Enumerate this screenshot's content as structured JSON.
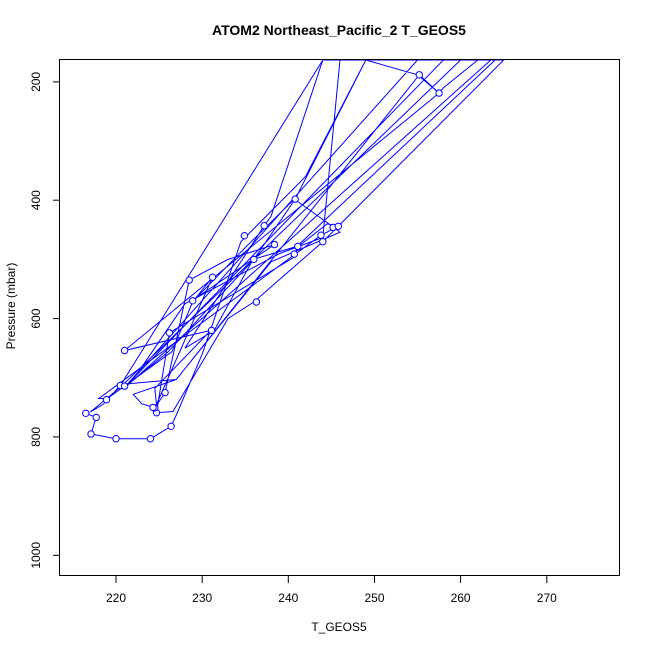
{
  "chart_data": {
    "type": "line",
    "title": "ATOM2 Northeast_Pacific_2 T_GEOS5",
    "xlabel": "T_GEOS5",
    "ylabel": "Pressure (mbar)",
    "xlim": [
      213.5,
      278.5
    ],
    "ylim": [
      1035,
      163
    ],
    "y_reversed": true,
    "xticks": [
      220,
      230,
      240,
      250,
      260,
      270
    ],
    "yticks": [
      200,
      400,
      600,
      800,
      1000
    ],
    "color": "#0000ff",
    "grid": false,
    "series": [
      {
        "points": [
          [
            216.5,
            760
          ],
          [
            217.7,
            767
          ],
          [
            217.1,
            795
          ],
          [
            220.0,
            803
          ],
          [
            224.0,
            803
          ],
          [
            226.4,
            782
          ],
          [
            227.0,
            763
          ],
          [
            230.0,
            660
          ],
          [
            234.5,
            470
          ],
          [
            242.0,
            360
          ],
          [
            249.0,
            163
          ],
          [
            255.0,
            188
          ],
          [
            257.5,
            219
          ],
          [
            258.0,
            210
          ],
          [
            262.0,
            163
          ],
          [
            264.0,
            163
          ],
          [
            241.0,
            478
          ],
          [
            235.9,
            500
          ],
          [
            231.4,
            620
          ],
          [
            228.0,
            650
          ],
          [
            237.2,
            443
          ],
          [
            238.0,
            427
          ],
          [
            244.0,
            163
          ],
          [
            265.0,
            163
          ],
          [
            244.0,
            470
          ],
          [
            236.0,
            572
          ],
          [
            233.0,
            600
          ],
          [
            226.6,
            757
          ],
          [
            224.7,
            759
          ],
          [
            226.2,
            624
          ],
          [
            240.7,
            496
          ],
          [
            241.0,
            480
          ],
          [
            244.5,
            440
          ],
          [
            245.8,
            444
          ],
          [
            243.8,
            459
          ],
          [
            218.0,
            735
          ],
          [
            219.0,
            735
          ],
          [
            226.5,
            656
          ],
          [
            229.0,
            568
          ],
          [
            238.4,
            475
          ],
          [
            233.0,
            500
          ],
          [
            228.5,
            535
          ],
          [
            225.7,
            725
          ],
          [
            224.5,
            751
          ],
          [
            223.0,
            744
          ],
          [
            222.0,
            728
          ],
          [
            227.0,
            703
          ],
          [
            238.0,
            504
          ],
          [
            246.0,
            454
          ],
          [
            245.3,
            446
          ],
          [
            240.7,
            398
          ],
          [
            235.0,
            480
          ],
          [
            229.0,
            570
          ],
          [
            231.2,
            530
          ],
          [
            224.7,
            745
          ],
          [
            224.5,
            718
          ],
          [
            231.0,
            620
          ],
          [
            221.0,
            654
          ],
          [
            257.5,
            219
          ],
          [
            255.2,
            188
          ],
          [
            227.0,
            703
          ],
          [
            220.7,
            711
          ],
          [
            221.3,
            711
          ],
          [
            255.0,
            163
          ],
          [
            258.0,
            163
          ],
          [
            221.0,
            716
          ],
          [
            226.0,
            657
          ],
          [
            236.0,
            500
          ],
          [
            240.8,
            398
          ],
          [
            249.0,
            163
          ],
          [
            260.0,
            163
          ],
          [
            220.5,
            716
          ],
          [
            217.0,
            758
          ],
          [
            218.5,
            745
          ],
          [
            219.0,
            737
          ],
          [
            220.6,
            711
          ],
          [
            244.0,
            163
          ],
          [
            246.0,
            163
          ],
          [
            244.0,
            463
          ],
          [
            239.0,
            490
          ],
          [
            228.0,
            575
          ],
          [
            222.0,
            703
          ],
          [
            221.3,
            713
          ],
          [
            263.5,
            163
          ]
        ],
        "markers": [
          [
            216.5,
            760
          ],
          [
            217.7,
            767
          ],
          [
            217.1,
            795
          ],
          [
            220.0,
            803
          ],
          [
            224.0,
            803
          ],
          [
            226.4,
            782
          ],
          [
            224.7,
            759
          ],
          [
            225.7,
            725
          ],
          [
            224.5,
            751
          ],
          [
            224.3,
            750
          ],
          [
            218.9,
            737
          ],
          [
            220.5,
            713
          ],
          [
            221.0,
            714
          ],
          [
            221.0,
            654
          ],
          [
            226.2,
            624
          ],
          [
            231.1,
            620
          ],
          [
            228.9,
            570
          ],
          [
            228.5,
            535
          ],
          [
            231.2,
            530
          ],
          [
            234.9,
            460
          ],
          [
            237.2,
            443
          ],
          [
            238.4,
            475
          ],
          [
            236.0,
            500
          ],
          [
            236.3,
            572
          ],
          [
            240.7,
            491
          ],
          [
            241.1,
            478
          ],
          [
            243.8,
            459
          ],
          [
            244.0,
            470
          ],
          [
            245.2,
            446
          ],
          [
            245.8,
            444
          ],
          [
            240.8,
            398
          ],
          [
            255.2,
            188
          ],
          [
            257.5,
            219
          ]
        ]
      }
    ]
  }
}
